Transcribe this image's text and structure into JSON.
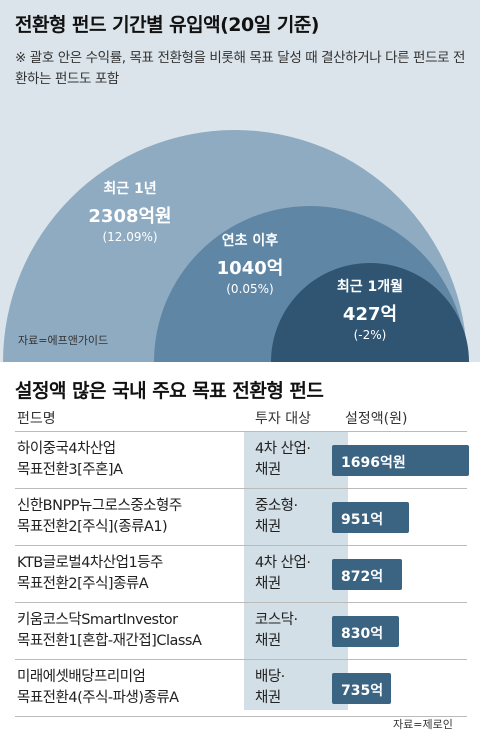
{
  "top": {
    "title": "전환형 펀드 기간별 유입액(20일 기준)",
    "note": "※ 괄호 안은 수익률, 목표 전환형을 비롯해 목표 달성 때 결산하거나 다른 펀드로 전환하는 펀드도 포함",
    "source": "자료=에프앤가이드"
  },
  "bottom": {
    "title": "설정액 많은 국내 주요 목표 전환형 펀드",
    "headers": {
      "name": "펀드명",
      "type": "투자 대상",
      "amount": "설정액(원)"
    },
    "source": "자료=제로인"
  },
  "colors": {
    "outer": "#8eabc2",
    "middle": "#5f86a4",
    "inner": "#2f5573",
    "bar": "#3b6382",
    "band": "#d3dfe7",
    "background": "#dbe4ea"
  },
  "chart_data": [
    {
      "type": "bubble",
      "title": "전환형 펀드 기간별 유입액(20일 기준)",
      "unit": "억원",
      "series": [
        {
          "name": "최근 1년",
          "value": 2308,
          "label": "2308억원",
          "return_label": "(12.09%)"
        },
        {
          "name": "연초 이후",
          "value": 1040,
          "label": "1040억",
          "return_label": "(0.05%)"
        },
        {
          "name": "최근 1개월",
          "value": 427,
          "label": "427억",
          "return_label": "(-2%)"
        }
      ]
    },
    {
      "type": "bar",
      "title": "설정액 많은 국내 주요 목표 전환형 펀드",
      "unit": "억원",
      "rows": [
        {
          "name1": "하이중국4차산업",
          "name2": "목표전환3[주혼]A",
          "type1": "4차 산업·",
          "type2": "채권",
          "value": 1696,
          "label": "1696억원"
        },
        {
          "name1": "신한BNPP뉴그로스중소형주",
          "name2": "목표전환2[주식](종류A1)",
          "type1": "중소형·",
          "type2": "채권",
          "value": 951,
          "label": "951억"
        },
        {
          "name1": "KTB글로벌4차산업1등주",
          "name2": "목표전환2[주식]종류A",
          "type1": "4차 산업·",
          "type2": "채권",
          "value": 872,
          "label": "872억"
        },
        {
          "name1": "키움코스닥SmartInvestor",
          "name2": "목표전환1[혼합-재간접]ClassA",
          "type1": "코스닥·",
          "type2": "채권",
          "value": 830,
          "label": "830억"
        },
        {
          "name1": "미래에셋배당프리미엄",
          "name2": "목표전환4(주식-파생)종류A",
          "type1": "배당·",
          "type2": "채권",
          "value": 735,
          "label": "735억"
        }
      ]
    }
  ]
}
